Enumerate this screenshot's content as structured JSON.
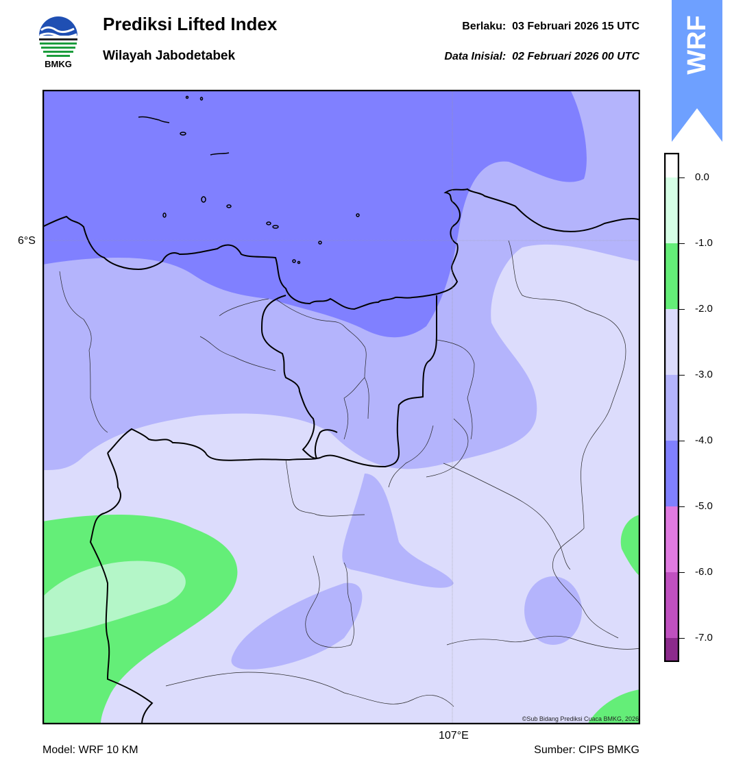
{
  "header": {
    "title": "Prediksi Lifted Index",
    "subtitle": "Wilayah Jabodetabek",
    "valid_label": "Berlaku:",
    "valid_value": "03 Februari 2026 15 UTC",
    "init_label": "Data Inisial:",
    "init_value": "02 Februari 2026 00 UTC"
  },
  "logo": {
    "text": "BMKG",
    "icon": "bmkg-logo"
  },
  "badge": {
    "text": "WRF",
    "color": "#6ea0ff"
  },
  "map": {
    "lat_label": "6°S",
    "lon_label": "107°E",
    "copyright": "©Sub Bidang Prediksi Cuaca BMKG, 2026"
  },
  "footer": {
    "model": "Model: WRF 10 KM",
    "source": "Sumber: CIPS BMKG"
  },
  "colorbar": {
    "ticks": [
      "0.0",
      "-1.0",
      "-2.0",
      "-3.0",
      "-4.0",
      "-5.0",
      "-6.0",
      "-7.0"
    ],
    "colors": [
      "#d6ffe6",
      "#b4f6c8",
      "#64ee78",
      "#dcdcfc",
      "#b4b4fc",
      "#8080ff",
      "#e07ae0",
      "#c050c0",
      "#8c2a8c"
    ]
  }
}
